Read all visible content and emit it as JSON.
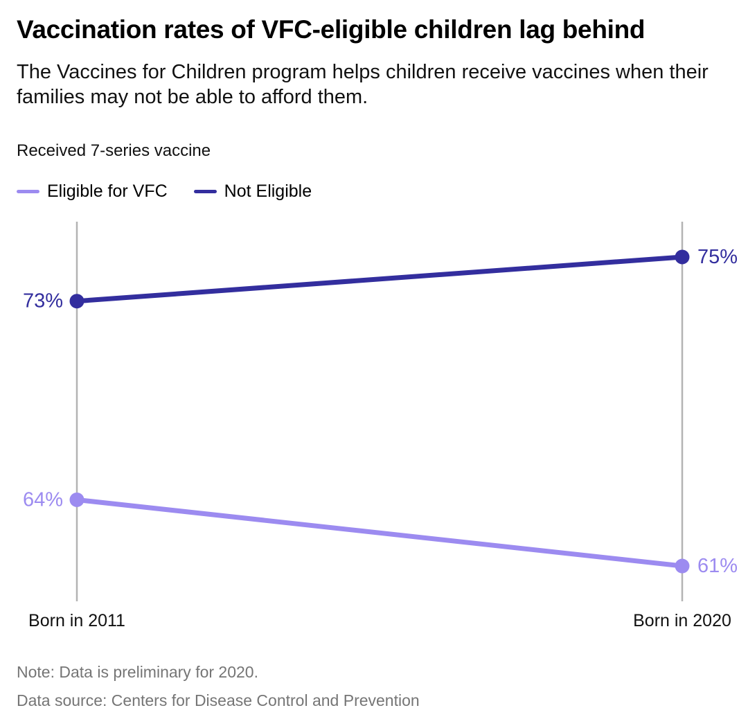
{
  "header": {
    "title": "Vaccination rates of VFC-eligible children lag behind",
    "subtitle": "The Vaccines for Children program helps children receive vaccines when their families may not be able to afford them."
  },
  "chart": {
    "axis_title": "Received 7-series vaccine"
  },
  "chart_data": {
    "type": "line",
    "variant": "slope",
    "categories": [
      "Born in 2011",
      "Born in 2020"
    ],
    "series": [
      {
        "name": "Eligible for VFC",
        "values": [
          64,
          61
        ],
        "labels": [
          "64%",
          "61%"
        ],
        "color": "#9c8bf0"
      },
      {
        "name": "Not Eligible",
        "values": [
          73,
          75
        ],
        "labels": [
          "73%",
          "75%"
        ],
        "color": "#332e9e"
      }
    ],
    "title": "Vaccination rates of VFC-eligible children lag behind",
    "subtitle": "The Vaccines for Children program helps children receive vaccines when their families may not be able to afford them.",
    "xlabel": "",
    "ylabel": "Received 7-series vaccine",
    "ylim": [
      59.4,
      76.6
    ],
    "grid": "vertical category axis lines only",
    "legend_position": "top-left",
    "value_label_format": "percent"
  },
  "footer": {
    "note": "Note: Data is preliminary for 2020.",
    "source": "Data source: Centers for Disease Control and Prevention"
  },
  "colors": {
    "eligible_line": "#9c8bf0",
    "not_eligible_line": "#332e9e",
    "axis": "#b3b3b3",
    "note_text": "#757575",
    "title_text": "#000000",
    "body_text": "#111111",
    "background": "#ffffff"
  }
}
